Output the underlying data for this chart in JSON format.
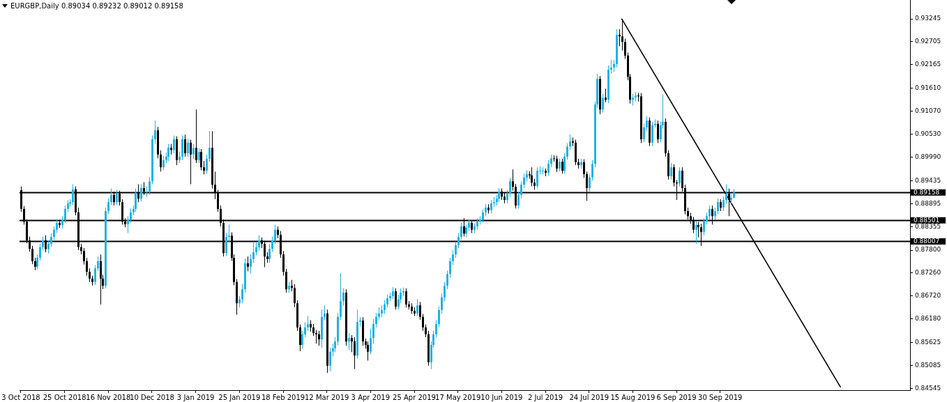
{
  "chart_data": {
    "type": "candlestick",
    "title": "EURGBP,Daily 0.89034 0.89232 0.89012 0.89158",
    "categories": [
      "3 Oct 2018",
      null,
      null,
      null,
      null,
      null,
      null,
      null,
      null,
      null,
      null,
      null,
      null,
      null,
      null,
      null,
      "25 Oct 2018",
      null,
      null,
      null,
      null,
      null,
      null,
      null,
      null,
      null,
      null,
      null,
      null,
      null,
      null,
      null,
      "16 Nov 2018",
      null,
      null,
      null,
      null,
      null,
      null,
      null,
      null,
      null,
      null,
      null,
      null,
      null,
      null,
      null,
      "10 Dec 2018",
      null,
      null,
      null,
      null,
      null,
      null,
      null,
      null,
      null,
      null,
      null,
      null,
      null,
      null,
      null,
      "3 Jan 2019",
      null,
      null,
      null,
      null,
      null,
      null,
      null,
      null,
      null,
      null,
      null,
      null,
      null,
      null,
      null,
      "25 Jan 2019",
      null,
      null,
      null,
      null,
      null,
      null,
      null,
      null,
      null,
      null,
      null,
      null,
      null,
      null,
      null,
      "18 Feb 2019",
      null,
      null,
      null,
      null,
      null,
      null,
      null,
      null,
      null,
      null,
      null,
      null,
      null,
      null,
      null,
      "12 Mar 2019",
      null,
      null,
      null,
      null,
      null,
      null,
      null,
      null,
      null,
      null,
      null,
      null,
      null,
      null,
      null,
      "3 Apr 2019",
      null,
      null,
      null,
      null,
      null,
      null,
      null,
      null,
      null,
      null,
      null,
      null,
      null,
      null,
      null,
      "25 Apr 2019",
      null,
      null,
      null,
      null,
      null,
      null,
      null,
      null,
      null,
      null,
      null,
      null,
      null,
      null,
      null,
      "17 May 2019",
      null,
      null,
      null,
      null,
      null,
      null,
      null,
      null,
      null,
      null,
      null,
      null,
      null,
      null,
      null,
      "10 Jun 2019",
      null,
      null,
      null,
      null,
      null,
      null,
      null,
      null,
      null,
      null,
      null,
      null,
      null,
      null,
      null,
      "2 Jul 2019",
      null,
      null,
      null,
      null,
      null,
      null,
      null,
      null,
      null,
      null,
      null,
      null,
      null,
      null,
      null,
      "24 Jul 2019",
      null,
      null,
      null,
      null,
      null,
      null,
      null,
      null,
      null,
      null,
      null,
      null,
      null,
      null,
      null,
      "15 Aug 2019",
      null,
      null,
      null,
      null,
      null,
      null,
      null,
      null,
      null,
      null,
      null,
      null,
      null,
      null,
      null,
      "6 Sep 2019",
      null,
      null,
      null,
      null,
      null,
      null,
      null,
      null,
      null,
      null,
      null,
      null,
      null,
      null,
      null,
      "30 Sep 2019",
      null,
      null,
      null,
      null,
      null,
      null,
      null,
      null,
      null,
      null,
      null,
      null,
      null,
      null,
      null,
      null,
      null,
      null,
      null,
      null,
      null,
      null,
      null,
      null,
      null,
      null,
      null,
      null,
      null,
      null,
      null,
      null,
      null,
      null,
      null,
      null,
      null,
      null,
      null,
      null,
      null,
      null,
      null,
      null,
      null,
      null,
      null,
      null,
      null,
      null,
      null,
      null,
      null,
      null,
      null,
      null,
      null,
      null,
      null,
      null,
      null,
      null,
      null,
      null,
      null,
      null,
      null,
      null,
      null
    ],
    "ohlc": [
      [
        0.8921,
        0.893,
        0.887,
        0.8877
      ],
      [
        0.8877,
        0.8884,
        0.884,
        0.8847
      ],
      [
        0.8847,
        0.8852,
        0.8796,
        0.8803
      ],
      [
        0.8803,
        0.8812,
        0.8776,
        0.8783
      ],
      [
        0.8783,
        0.879,
        0.8747,
        0.8754
      ],
      [
        0.8754,
        0.8762,
        0.8733,
        0.8741
      ],
      [
        0.8741,
        0.877,
        0.8735,
        0.8762
      ],
      [
        0.8762,
        0.8795,
        0.8756,
        0.8787
      ],
      [
        0.8787,
        0.8812,
        0.878,
        0.8803
      ],
      [
        0.8803,
        0.8815,
        0.8775,
        0.8782
      ],
      [
        0.8782,
        0.8803,
        0.8772,
        0.8795
      ],
      [
        0.8795,
        0.882,
        0.8788,
        0.8811
      ],
      [
        0.8811,
        0.8836,
        0.8804,
        0.8828
      ],
      [
        0.8828,
        0.8853,
        0.882,
        0.8844
      ],
      [
        0.8844,
        0.8851,
        0.8832,
        0.8839
      ],
      [
        0.8839,
        0.886,
        0.8831,
        0.8852
      ],
      [
        0.8852,
        0.8885,
        0.8845,
        0.8877
      ],
      [
        0.8877,
        0.8898,
        0.887,
        0.889
      ],
      [
        0.889,
        0.89,
        0.8882,
        0.8893
      ],
      [
        0.8893,
        0.8935,
        0.8886,
        0.8923
      ],
      [
        0.8923,
        0.893,
        0.8862,
        0.8869
      ],
      [
        0.8869,
        0.888,
        0.878,
        0.8787
      ],
      [
        0.8787,
        0.8795,
        0.877,
        0.8778
      ],
      [
        0.8778,
        0.8785,
        0.8746,
        0.8754
      ],
      [
        0.8754,
        0.8762,
        0.872,
        0.8729
      ],
      [
        0.8729,
        0.8737,
        0.8705,
        0.8713
      ],
      [
        0.8713,
        0.872,
        0.8697,
        0.8705
      ],
      [
        0.8705,
        0.8745,
        0.8698,
        0.8737
      ],
      [
        0.8737,
        0.8765,
        0.873,
        0.8754
      ],
      [
        0.8754,
        0.877,
        0.8652,
        0.8713
      ],
      [
        0.8713,
        0.8722,
        0.8688,
        0.8696
      ],
      [
        0.8696,
        0.888,
        0.869,
        0.8872
      ],
      [
        0.8872,
        0.8902,
        0.8865,
        0.8893
      ],
      [
        0.8893,
        0.8925,
        0.8886,
        0.891
      ],
      [
        0.891,
        0.8918,
        0.8885,
        0.8893
      ],
      [
        0.8893,
        0.8922,
        0.8886,
        0.8913
      ],
      [
        0.8913,
        0.892,
        0.8885,
        0.8893
      ],
      [
        0.8893,
        0.89,
        0.884,
        0.8847
      ],
      [
        0.8847,
        0.8855,
        0.8834,
        0.8841
      ],
      [
        0.8841,
        0.886,
        0.882,
        0.8852
      ],
      [
        0.8852,
        0.8878,
        0.8845,
        0.8869
      ],
      [
        0.8869,
        0.8885,
        0.8862,
        0.8877
      ],
      [
        0.8877,
        0.8925,
        0.887,
        0.8915
      ],
      [
        0.8915,
        0.8935,
        0.8893,
        0.8901
      ],
      [
        0.8901,
        0.8935,
        0.8894,
        0.8926
      ],
      [
        0.8926,
        0.894,
        0.891,
        0.8918
      ],
      [
        0.8918,
        0.893,
        0.8905,
        0.8918
      ],
      [
        0.8918,
        0.8952,
        0.891,
        0.8942
      ],
      [
        0.8942,
        0.905,
        0.8935,
        0.9041
      ],
      [
        0.9041,
        0.9085,
        0.903,
        0.9062
      ],
      [
        0.9062,
        0.907,
        0.8996,
        0.9005
      ],
      [
        0.9005,
        0.9015,
        0.8965,
        0.8975
      ],
      [
        0.8975,
        0.9002,
        0.8968,
        0.8992
      ],
      [
        0.8992,
        0.901,
        0.8985,
        0.9
      ],
      [
        0.9,
        0.903,
        0.899,
        0.9021
      ],
      [
        0.9021,
        0.903,
        0.9005,
        0.9016
      ],
      [
        0.9016,
        0.905,
        0.9008,
        0.9041
      ],
      [
        0.9041,
        0.9048,
        0.898,
        0.8992
      ],
      [
        0.8992,
        0.9012,
        0.8985,
        0.9
      ],
      [
        0.9,
        0.905,
        0.8992,
        0.9041
      ],
      [
        0.9041,
        0.9052,
        0.9,
        0.9008
      ],
      [
        0.9008,
        0.9042,
        0.9,
        0.9033
      ],
      [
        0.9033,
        0.904,
        0.8935,
        0.9005
      ],
      [
        0.9005,
        0.903,
        0.8995,
        0.9021
      ],
      [
        0.9021,
        0.9111,
        0.8985,
        0.8992
      ],
      [
        0.8992,
        0.902,
        0.8985,
        0.9011
      ],
      [
        0.9011,
        0.9018,
        0.8968,
        0.8975
      ],
      [
        0.8975,
        0.899,
        0.8958,
        0.8967
      ],
      [
        0.8967,
        0.9005,
        0.896,
        0.8995
      ],
      [
        0.8995,
        0.906,
        0.8988,
        0.9021
      ],
      [
        0.9021,
        0.906,
        0.8925,
        0.8934
      ],
      [
        0.8934,
        0.8965,
        0.89,
        0.8915
      ],
      [
        0.8915,
        0.8922,
        0.887,
        0.8877
      ],
      [
        0.8877,
        0.8885,
        0.8836,
        0.8844
      ],
      [
        0.8844,
        0.8852,
        0.8765,
        0.8773
      ],
      [
        0.8773,
        0.882,
        0.8766,
        0.8811
      ],
      [
        0.8811,
        0.884,
        0.88,
        0.8814
      ],
      [
        0.8814,
        0.8822,
        0.8755,
        0.8762
      ],
      [
        0.8762,
        0.877,
        0.8697,
        0.8705
      ],
      [
        0.8705,
        0.8712,
        0.8628,
        0.8655
      ],
      [
        0.8655,
        0.8672,
        0.8645,
        0.8664
      ],
      [
        0.8664,
        0.87,
        0.8655,
        0.8688
      ],
      [
        0.8688,
        0.876,
        0.868,
        0.8749
      ],
      [
        0.8749,
        0.8765,
        0.873,
        0.8741
      ],
      [
        0.8741,
        0.877,
        0.8725,
        0.8759
      ],
      [
        0.8759,
        0.88,
        0.875,
        0.8775
      ],
      [
        0.8775,
        0.8798,
        0.8768,
        0.8787
      ],
      [
        0.8787,
        0.8815,
        0.8778,
        0.8803
      ],
      [
        0.8803,
        0.881,
        0.8785,
        0.8795
      ],
      [
        0.8795,
        0.8802,
        0.874,
        0.8765
      ],
      [
        0.8765,
        0.8775,
        0.875,
        0.8759
      ],
      [
        0.8759,
        0.8795,
        0.875,
        0.8783
      ],
      [
        0.8783,
        0.8812,
        0.8776,
        0.8803
      ],
      [
        0.8803,
        0.884,
        0.8795,
        0.8828
      ],
      [
        0.8828,
        0.8836,
        0.8808,
        0.8816
      ],
      [
        0.8816,
        0.8825,
        0.8762,
        0.877
      ],
      [
        0.877,
        0.8778,
        0.872,
        0.8729
      ],
      [
        0.8729,
        0.8736,
        0.868,
        0.8688
      ],
      [
        0.8688,
        0.8705,
        0.868,
        0.8696
      ],
      [
        0.8696,
        0.871,
        0.8683,
        0.8691
      ],
      [
        0.8691,
        0.87,
        0.8646,
        0.8655
      ],
      [
        0.8655,
        0.8662,
        0.859,
        0.8598
      ],
      [
        0.8598,
        0.8605,
        0.8542,
        0.8557
      ],
      [
        0.8557,
        0.859,
        0.8548,
        0.8582
      ],
      [
        0.8582,
        0.861,
        0.8575,
        0.8598
      ],
      [
        0.8598,
        0.8625,
        0.859,
        0.8606
      ],
      [
        0.8606,
        0.8615,
        0.8588,
        0.8598
      ],
      [
        0.8598,
        0.8606,
        0.8578,
        0.8585
      ],
      [
        0.8585,
        0.8592,
        0.856,
        0.8582
      ],
      [
        0.8582,
        0.859,
        0.8555,
        0.857
      ],
      [
        0.857,
        0.864,
        0.855,
        0.8623
      ],
      [
        0.8623,
        0.865,
        0.8615,
        0.8631
      ],
      [
        0.8631,
        0.864,
        0.8491,
        0.8508
      ],
      [
        0.8508,
        0.855,
        0.8495,
        0.8541
      ],
      [
        0.8541,
        0.856,
        0.853,
        0.8549
      ],
      [
        0.8549,
        0.8575,
        0.854,
        0.8565
      ],
      [
        0.8565,
        0.8632,
        0.8556,
        0.8623
      ],
      [
        0.8623,
        0.8726,
        0.8615,
        0.866
      ],
      [
        0.866,
        0.869,
        0.865,
        0.868
      ],
      [
        0.868,
        0.8688,
        0.8555,
        0.8565
      ],
      [
        0.8565,
        0.8585,
        0.8545,
        0.8573
      ],
      [
        0.8573,
        0.858,
        0.854,
        0.8565
      ],
      [
        0.8565,
        0.8575,
        0.85,
        0.8532
      ],
      [
        0.8532,
        0.864,
        0.8525,
        0.8611
      ],
      [
        0.8611,
        0.8622,
        0.86,
        0.8614
      ],
      [
        0.8614,
        0.8622,
        0.8555,
        0.8565
      ],
      [
        0.8565,
        0.8572,
        0.8548,
        0.8557
      ],
      [
        0.8557,
        0.8565,
        0.852,
        0.8541
      ],
      [
        0.8541,
        0.8595,
        0.8535,
        0.8573
      ],
      [
        0.8573,
        0.8618,
        0.856,
        0.8606
      ],
      [
        0.8606,
        0.8632,
        0.8598,
        0.8623
      ],
      [
        0.8623,
        0.8645,
        0.8615,
        0.8631
      ],
      [
        0.8631,
        0.865,
        0.8622,
        0.8639
      ],
      [
        0.8639,
        0.8662,
        0.863,
        0.8652
      ],
      [
        0.8652,
        0.8675,
        0.8645,
        0.8667
      ],
      [
        0.8667,
        0.868,
        0.866,
        0.8672
      ],
      [
        0.8672,
        0.8693,
        0.8665,
        0.8683
      ],
      [
        0.8683,
        0.869,
        0.864,
        0.8647
      ],
      [
        0.8647,
        0.8675,
        0.864,
        0.8664
      ],
      [
        0.8664,
        0.869,
        0.8655,
        0.868
      ],
      [
        0.868,
        0.8692,
        0.8672,
        0.8683
      ],
      [
        0.8683,
        0.869,
        0.8645,
        0.8652
      ],
      [
        0.8652,
        0.866,
        0.864,
        0.8647
      ],
      [
        0.8647,
        0.8655,
        0.863,
        0.8637
      ],
      [
        0.8637,
        0.8645,
        0.8625,
        0.8631
      ],
      [
        0.8631,
        0.8665,
        0.8625,
        0.865
      ],
      [
        0.865,
        0.8658,
        0.8616,
        0.8623
      ],
      [
        0.8623,
        0.863,
        0.859,
        0.8598
      ],
      [
        0.8598,
        0.8605,
        0.8575,
        0.8582
      ],
      [
        0.8582,
        0.859,
        0.8508,
        0.8516
      ],
      [
        0.8516,
        0.8565,
        0.85,
        0.8557
      ],
      [
        0.8557,
        0.859,
        0.855,
        0.8582
      ],
      [
        0.8582,
        0.8615,
        0.8575,
        0.8606
      ],
      [
        0.8606,
        0.8648,
        0.8598,
        0.8639
      ],
      [
        0.8639,
        0.8678,
        0.863,
        0.8669
      ],
      [
        0.8669,
        0.8705,
        0.866,
        0.8696
      ],
      [
        0.8696,
        0.8732,
        0.8688,
        0.8724
      ],
      [
        0.8724,
        0.8762,
        0.8715,
        0.8754
      ],
      [
        0.8754,
        0.878,
        0.8745,
        0.877
      ],
      [
        0.877,
        0.88,
        0.8762,
        0.8792
      ],
      [
        0.8792,
        0.882,
        0.8785,
        0.8811
      ],
      [
        0.8811,
        0.8845,
        0.8805,
        0.8836
      ],
      [
        0.8836,
        0.8855,
        0.8812,
        0.8819
      ],
      [
        0.8819,
        0.884,
        0.881,
        0.8833
      ],
      [
        0.8833,
        0.8852,
        0.8825,
        0.8844
      ],
      [
        0.8844,
        0.885,
        0.882,
        0.8828
      ],
      [
        0.8828,
        0.8843,
        0.882,
        0.8836
      ],
      [
        0.8836,
        0.8855,
        0.8828,
        0.8847
      ],
      [
        0.8847,
        0.886,
        0.884,
        0.8852
      ],
      [
        0.8852,
        0.8876,
        0.8845,
        0.8869
      ],
      [
        0.8869,
        0.8888,
        0.886,
        0.888
      ],
      [
        0.888,
        0.8888,
        0.8866,
        0.8874
      ],
      [
        0.8874,
        0.8898,
        0.8866,
        0.889
      ],
      [
        0.889,
        0.8905,
        0.8882,
        0.8893
      ],
      [
        0.8893,
        0.891,
        0.8885,
        0.8901
      ],
      [
        0.8901,
        0.8926,
        0.8894,
        0.8918
      ],
      [
        0.8918,
        0.8925,
        0.8898,
        0.8906
      ],
      [
        0.8906,
        0.8915,
        0.889,
        0.8898
      ],
      [
        0.8898,
        0.8922,
        0.889,
        0.8913
      ],
      [
        0.8913,
        0.895,
        0.8905,
        0.8942
      ],
      [
        0.8942,
        0.897,
        0.892,
        0.8929
      ],
      [
        0.8929,
        0.8936,
        0.8878,
        0.8885
      ],
      [
        0.8885,
        0.8918,
        0.8878,
        0.891
      ],
      [
        0.891,
        0.8942,
        0.8902,
        0.8934
      ],
      [
        0.8934,
        0.896,
        0.8926,
        0.8951
      ],
      [
        0.8951,
        0.8968,
        0.8942,
        0.8959
      ],
      [
        0.8959,
        0.8966,
        0.8948,
        0.8956
      ],
      [
        0.8956,
        0.8975,
        0.893,
        0.8939
      ],
      [
        0.8939,
        0.8948,
        0.8922,
        0.8931
      ],
      [
        0.8931,
        0.8975,
        0.8925,
        0.8967
      ],
      [
        0.8967,
        0.8978,
        0.8958,
        0.8967
      ],
      [
        0.8967,
        0.8975,
        0.8958,
        0.8967
      ],
      [
        0.8967,
        0.8972,
        0.8954,
        0.8962
      ],
      [
        0.8962,
        0.8992,
        0.8955,
        0.8983
      ],
      [
        0.8983,
        0.9005,
        0.8975,
        0.8996
      ],
      [
        0.8996,
        0.9003,
        0.8988,
        0.8995
      ],
      [
        0.8995,
        0.9002,
        0.8964,
        0.8972
      ],
      [
        0.8972,
        0.8996,
        0.8965,
        0.8988
      ],
      [
        0.8988,
        0.8995,
        0.896,
        0.8967
      ],
      [
        0.8967,
        0.9008,
        0.896,
        0.9
      ],
      [
        0.9,
        0.9032,
        0.8993,
        0.9024
      ],
      [
        0.9024,
        0.9052,
        0.9016,
        0.9036
      ],
      [
        0.9036,
        0.9045,
        0.9025,
        0.9033
      ],
      [
        0.9033,
        0.904,
        0.898,
        0.8987
      ],
      [
        0.8987,
        0.8995,
        0.8972,
        0.898
      ],
      [
        0.898,
        0.8995,
        0.8972,
        0.8987
      ],
      [
        0.8987,
        0.8994,
        0.895,
        0.8959
      ],
      [
        0.8959,
        0.8965,
        0.8896,
        0.8926
      ],
      [
        0.8926,
        0.8958,
        0.8918,
        0.8951
      ],
      [
        0.8951,
        0.8992,
        0.8944,
        0.8983
      ],
      [
        0.8983,
        0.913,
        0.8975,
        0.9123
      ],
      [
        0.9123,
        0.9195,
        0.9115,
        0.9183
      ],
      [
        0.9183,
        0.919,
        0.91,
        0.9111
      ],
      [
        0.9111,
        0.9148,
        0.9104,
        0.9139
      ],
      [
        0.9139,
        0.916,
        0.9128,
        0.9134
      ],
      [
        0.9134,
        0.9215,
        0.9126,
        0.9205
      ],
      [
        0.9205,
        0.9228,
        0.9196,
        0.921
      ],
      [
        0.921,
        0.9228,
        0.92,
        0.9218
      ],
      [
        0.9218,
        0.93,
        0.921,
        0.9287
      ],
      [
        0.9287,
        0.93,
        0.926,
        0.9283
      ],
      [
        0.9283,
        0.9324,
        0.925,
        0.927
      ],
      [
        0.927,
        0.9278,
        0.923,
        0.9238
      ],
      [
        0.9238,
        0.9245,
        0.918,
        0.9188
      ],
      [
        0.9188,
        0.9195,
        0.9125,
        0.9134
      ],
      [
        0.9134,
        0.9148,
        0.912,
        0.9139
      ],
      [
        0.9139,
        0.9152,
        0.913,
        0.9144
      ],
      [
        0.9144,
        0.915,
        0.913,
        0.9142
      ],
      [
        0.9142,
        0.915,
        0.9032,
        0.9041
      ],
      [
        0.9041,
        0.9078,
        0.9034,
        0.9069
      ],
      [
        0.9069,
        0.9095,
        0.906,
        0.9085
      ],
      [
        0.9085,
        0.9092,
        0.9025,
        0.9033
      ],
      [
        0.9033,
        0.9082,
        0.9025,
        0.9074
      ],
      [
        0.9074,
        0.9088,
        0.9068,
        0.9077
      ],
      [
        0.9077,
        0.9085,
        0.9032,
        0.9041
      ],
      [
        0.9041,
        0.9082,
        0.9034,
        0.9074
      ],
      [
        0.9074,
        0.9147,
        0.9066,
        0.9082
      ],
      [
        0.9082,
        0.909,
        0.9,
        0.9008
      ],
      [
        0.9008,
        0.9015,
        0.8946,
        0.8954
      ],
      [
        0.8954,
        0.8985,
        0.8946,
        0.8975
      ],
      [
        0.8975,
        0.8982,
        0.893,
        0.8939
      ],
      [
        0.8939,
        0.8945,
        0.8898,
        0.8937
      ],
      [
        0.8937,
        0.8975,
        0.893,
        0.8967
      ],
      [
        0.8967,
        0.8975,
        0.8918,
        0.8926
      ],
      [
        0.8926,
        0.8934,
        0.8864,
        0.8872
      ],
      [
        0.8872,
        0.888,
        0.8852,
        0.886
      ],
      [
        0.886,
        0.8868,
        0.8842,
        0.8851
      ],
      [
        0.8851,
        0.8858,
        0.882,
        0.8828
      ],
      [
        0.8828,
        0.8848,
        0.8795,
        0.8839
      ],
      [
        0.8839,
        0.8846,
        0.881,
        0.8834
      ],
      [
        0.8834,
        0.8842,
        0.879,
        0.8823
      ],
      [
        0.8823,
        0.8855,
        0.8815,
        0.8847
      ],
      [
        0.8847,
        0.8868,
        0.884,
        0.886
      ],
      [
        0.886,
        0.8885,
        0.8852,
        0.8877
      ],
      [
        0.8877,
        0.8885,
        0.884,
        0.886
      ],
      [
        0.886,
        0.888,
        0.8852,
        0.8872
      ],
      [
        0.8872,
        0.8902,
        0.8865,
        0.8893
      ],
      [
        0.8893,
        0.89,
        0.8872,
        0.888
      ],
      [
        0.888,
        0.8906,
        0.8872,
        0.8898
      ],
      [
        0.8898,
        0.8935,
        0.889,
        0.8913
      ],
      [
        0.8913,
        0.8925,
        0.886,
        0.8898
      ],
      [
        0.8898,
        0.8912,
        0.889,
        0.8903
      ],
      [
        0.89034,
        0.89232,
        0.89012,
        0.89158
      ],
      null,
      null,
      null,
      null,
      null,
      null,
      null,
      null,
      null,
      null,
      null,
      null,
      null,
      null,
      null,
      null,
      null,
      null,
      null,
      null,
      null,
      null,
      null,
      null,
      null,
      null,
      null,
      null,
      null,
      null,
      null,
      null,
      null,
      null,
      null,
      null,
      null,
      null,
      null,
      null,
      null,
      null,
      null,
      null,
      null,
      null,
      null,
      null,
      null,
      null,
      null,
      null,
      null,
      null,
      null,
      null,
      null,
      null,
      null,
      null,
      null,
      null,
      null,
      null
    ],
    "series": [
      {
        "type": "line",
        "color": "#000000",
        "values": [
          null,
          null,
          null,
          null,
          null,
          null,
          null,
          null,
          null,
          null,
          null,
          null,
          null,
          null,
          null,
          null,
          null,
          null,
          null,
          null,
          null,
          null,
          null,
          null,
          null,
          null,
          null,
          null,
          null,
          null,
          null,
          null,
          null,
          null,
          null,
          null,
          null,
          null,
          null,
          null,
          null,
          null,
          null,
          null,
          null,
          null,
          null,
          null,
          null,
          null,
          null,
          null,
          null,
          null,
          null,
          null,
          null,
          null,
          null,
          null,
          null,
          null,
          null,
          null,
          null,
          null,
          null,
          null,
          null,
          null,
          null,
          null,
          null,
          null,
          null,
          null,
          null,
          null,
          null,
          null,
          null,
          null,
          null,
          null,
          null,
          null,
          null,
          null,
          null,
          null,
          null,
          null,
          null,
          null,
          null,
          null,
          null,
          null,
          null,
          null,
          null,
          null,
          null,
          null,
          null,
          null,
          null,
          null,
          null,
          null,
          null,
          null,
          null,
          null,
          null,
          null,
          null,
          null,
          null,
          null,
          null,
          null,
          null,
          null,
          null,
          null,
          null,
          null,
          null,
          null,
          null,
          null,
          null,
          null,
          null,
          null,
          null,
          null,
          null,
          null,
          null,
          null,
          null,
          null,
          null,
          null,
          null,
          null,
          null,
          null,
          null,
          null,
          null,
          null,
          null,
          null,
          null,
          null,
          null,
          null,
          null,
          null,
          null,
          null,
          null,
          null,
          null,
          null,
          null,
          null,
          null,
          null,
          null,
          null,
          null,
          null,
          null,
          null,
          null,
          null,
          null,
          null,
          null,
          null,
          null,
          null,
          null,
          null,
          null,
          null,
          null,
          null,
          null,
          null,
          null,
          null,
          null,
          null,
          null,
          null,
          null,
          null,
          null,
          null,
          null,
          null,
          null,
          null,
          null,
          null,
          null,
          null,
          null,
          null,
          null,
          null,
          null,
          null,
          null,
          null,
          0.9324,
          null,
          null,
          null,
          null,
          null,
          null,
          null,
          null,
          null,
          null,
          null,
          null,
          null,
          null,
          null,
          null,
          null,
          null,
          null,
          null,
          null,
          null,
          null,
          null,
          null,
          null,
          null,
          null,
          null,
          null,
          null,
          null,
          null,
          null,
          null,
          null,
          null,
          null,
          null,
          null,
          null,
          null,
          null,
          null,
          null,
          null,
          null,
          null,
          null,
          null,
          null,
          null,
          null,
          null,
          null,
          null,
          null,
          null,
          null,
          null,
          null,
          null,
          null,
          null,
          null,
          null,
          null,
          null,
          null,
          null,
          null,
          null,
          null,
          null,
          null,
          null,
          null,
          null,
          null,
          0.8458,
          null,
          null,
          null,
          null,
          null,
          null,
          null,
          null,
          null,
          null,
          null,
          null,
          null,
          null,
          null,
          null,
          null,
          null,
          null,
          null,
          null,
          null,
          null,
          null,
          null
        ]
      }
    ],
    "ylim": [
      0.84504,
      0.93688
    ],
    "yticks": [
      0.93245,
      0.92705,
      0.92165,
      {
        "value": 0.9161,
        "label": "0.91610"
      },
      {
        "value": 0.9107,
        "label": "0.91070"
      },
      {
        "value": 0.9053,
        "label": "0.90530"
      },
      {
        "value": 0.8999,
        "label": "0.89990"
      },
      0.89435,
      0.88895,
      0.88355,
      {
        "value": 0.878,
        "label": "0.87800"
      },
      {
        "value": 0.8726,
        "label": "0.87260"
      },
      {
        "value": 0.8672,
        "label": "0.86720"
      },
      {
        "value": 0.8618,
        "label": "0.86180"
      },
      0.85625,
      0.85085,
      0.84545
    ],
    "ref_lines": [
      {
        "axis": "y",
        "value": 0.89158,
        "label": "0.89158",
        "color": "#000000"
      },
      {
        "axis": "y",
        "value": 0.88501,
        "label": "0.88501",
        "color": "#000000"
      },
      {
        "axis": "y",
        "value": 0.88007,
        "label": "0.88007",
        "color": "#000000"
      }
    ]
  }
}
